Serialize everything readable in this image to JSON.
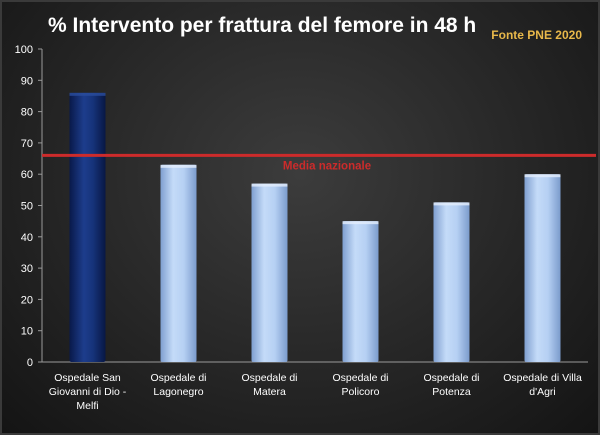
{
  "chart_data": {
    "type": "bar",
    "title": "% Intervento per frattura del femore in 48 h",
    "source": "Fonte PNE 2020",
    "categories": [
      [
        "Ospedale San",
        "Giovanni di Dio -",
        "Melfi"
      ],
      [
        "Ospedale di",
        "Lagonegro"
      ],
      [
        "Ospedale di",
        "Matera"
      ],
      [
        "Ospedale di",
        "Policoro"
      ],
      [
        "Ospedale di",
        "Potenza"
      ],
      [
        "Ospedale di Villa",
        "d'Agri"
      ]
    ],
    "values": [
      86,
      63,
      57,
      45,
      51,
      60
    ],
    "highlight_color": "#0f2a6e",
    "bar_color": "#a8c6ef",
    "ylim": [
      0,
      100
    ],
    "yticks": [
      0,
      10,
      20,
      30,
      40,
      50,
      60,
      70,
      80,
      90,
      100
    ],
    "grid": false,
    "reference_line": {
      "value": 66,
      "label": "Media nazionale",
      "color": "#cc2b2b"
    }
  }
}
